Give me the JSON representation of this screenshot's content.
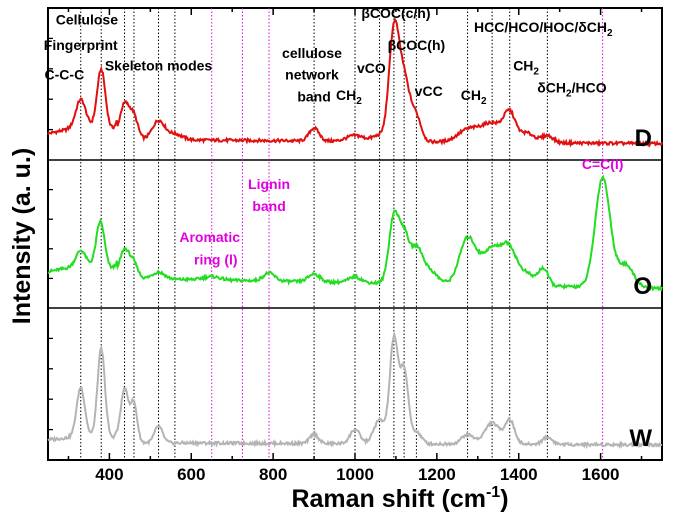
{
  "chart_data": {
    "type": "line",
    "xlabel": "Raman shift (cm",
    "xlabel_sup": "-1",
    "xlabel_close": ")",
    "ylabel": "Intensity (a. u.)",
    "xlim": [
      250,
      1750
    ],
    "xticks": [
      400,
      600,
      800,
      1000,
      1200,
      1400,
      1600
    ],
    "x_minor_step": 100,
    "panels": [
      {
        "label": "D",
        "color": "#e01010"
      },
      {
        "label": "O",
        "color": "#22dd22"
      },
      {
        "label": "W",
        "color": "#b4b4b4"
      }
    ],
    "series": [
      {
        "name": "D",
        "color": "#e01010",
        "peaks": [
          [
            330,
            0.24,
            12
          ],
          [
            380,
            0.5,
            10
          ],
          [
            437,
            0.3,
            12
          ],
          [
            460,
            0.18,
            10
          ],
          [
            520,
            0.16,
            15
          ],
          [
            560,
            0.05,
            18
          ],
          [
            900,
            0.11,
            12
          ],
          [
            1000,
            0.05,
            20
          ],
          [
            1060,
            0.05,
            18
          ],
          [
            1095,
            0.9,
            12
          ],
          [
            1120,
            0.52,
            14
          ],
          [
            1150,
            0.2,
            12
          ],
          [
            1275,
            0.1,
            25
          ],
          [
            1335,
            0.16,
            28
          ],
          [
            1378,
            0.22,
            14
          ],
          [
            1420,
            0.08,
            18
          ],
          [
            1470,
            0.06,
            14
          ]
        ],
        "baseline": [
          0.06,
          0.02
        ]
      },
      {
        "name": "O",
        "color": "#22dd22",
        "peaks": [
          [
            330,
            0.14,
            12
          ],
          [
            378,
            0.4,
            10
          ],
          [
            437,
            0.25,
            12
          ],
          [
            460,
            0.12,
            10
          ],
          [
            520,
            0.06,
            15
          ],
          [
            650,
            0.03,
            20
          ],
          [
            790,
            0.07,
            14
          ],
          [
            900,
            0.07,
            14
          ],
          [
            1000,
            0.05,
            15
          ],
          [
            1095,
            0.58,
            12
          ],
          [
            1120,
            0.4,
            12
          ],
          [
            1150,
            0.28,
            14
          ],
          [
            1180,
            0.12,
            20
          ],
          [
            1275,
            0.4,
            20
          ],
          [
            1335,
            0.32,
            25
          ],
          [
            1378,
            0.28,
            18
          ],
          [
            1420,
            0.1,
            18
          ],
          [
            1460,
            0.15,
            12
          ],
          [
            1605,
            0.96,
            18
          ],
          [
            1660,
            0.2,
            20
          ]
        ],
        "baseline": [
          0.15,
          0.05
        ]
      },
      {
        "name": "W",
        "color": "#b4b4b4",
        "peaks": [
          [
            330,
            0.42,
            10
          ],
          [
            380,
            0.75,
            9
          ],
          [
            437,
            0.45,
            10
          ],
          [
            460,
            0.32,
            8
          ],
          [
            520,
            0.14,
            10
          ],
          [
            900,
            0.08,
            10
          ],
          [
            1000,
            0.12,
            12
          ],
          [
            1060,
            0.2,
            14
          ],
          [
            1095,
            0.88,
            10
          ],
          [
            1120,
            0.62,
            10
          ],
          [
            1150,
            0.1,
            12
          ],
          [
            1275,
            0.08,
            15
          ],
          [
            1335,
            0.18,
            18
          ],
          [
            1378,
            0.2,
            12
          ],
          [
            1470,
            0.06,
            12
          ]
        ],
        "baseline": [
          0.03,
          0.01
        ]
      }
    ],
    "reference_lines": [
      {
        "x": 330,
        "color": "#000"
      },
      {
        "x": 380,
        "color": "#000"
      },
      {
        "x": 437,
        "color": "#000"
      },
      {
        "x": 460,
        "color": "#000"
      },
      {
        "x": 520,
        "color": "#000"
      },
      {
        "x": 560,
        "color": "#000"
      },
      {
        "x": 900,
        "color": "#000"
      },
      {
        "x": 1000,
        "color": "#000"
      },
      {
        "x": 1060,
        "color": "#000"
      },
      {
        "x": 1095,
        "color": "#000"
      },
      {
        "x": 1120,
        "color": "#000"
      },
      {
        "x": 1150,
        "color": "#000"
      },
      {
        "x": 1275,
        "color": "#000"
      },
      {
        "x": 1335,
        "color": "#000"
      },
      {
        "x": 1378,
        "color": "#000"
      },
      {
        "x": 1470,
        "color": "#000"
      },
      {
        "x": 650,
        "color": "#e000e0"
      },
      {
        "x": 725,
        "color": "#e000e0"
      },
      {
        "x": 790,
        "color": "#e000e0"
      },
      {
        "x": 1605,
        "color": "#e000e0"
      }
    ],
    "annotations": [
      {
        "text": "C-C-C",
        "x": 290,
        "panel": 0,
        "level": 0.55,
        "color": "black"
      },
      {
        "text": "Cellulose",
        "x": 345,
        "panel": 0,
        "level": 0.98,
        "color": "black"
      },
      {
        "text": "Fingerprint",
        "x": 330,
        "panel": 0,
        "level": 0.78,
        "color": "black"
      },
      {
        "text": "Skeleton modes",
        "x": 520,
        "panel": 0,
        "level": 0.62,
        "color": "black"
      },
      {
        "text": "cellulose",
        "x": 895,
        "panel": 0,
        "level": 0.72,
        "color": "black"
      },
      {
        "text": "network",
        "x": 895,
        "panel": 0,
        "level": 0.55,
        "color": "black"
      },
      {
        "text": "band",
        "x": 900,
        "panel": 0,
        "level": 0.38,
        "color": "black"
      },
      {
        "text": "vCO",
        "x": 1040,
        "panel": 0,
        "level": 0.6,
        "color": "black"
      },
      {
        "text": "βCOC(c/h)",
        "x": 1100,
        "panel": 0,
        "level": 1.03,
        "color": "black"
      },
      {
        "text": "βCOC(h)",
        "x": 1150,
        "panel": 0,
        "level": 0.78,
        "color": "black"
      },
      {
        "text": "vCC",
        "x": 1180,
        "panel": 0,
        "level": 0.42,
        "color": "black"
      },
      {
        "text": "HCC/HCO/HOC/δCH",
        "x": 1460,
        "panel": 0,
        "level": 0.92,
        "color": "black"
      },
      {
        "text": "CH",
        "x": 1418,
        "panel": 0,
        "level": 0.62,
        "color": "black"
      },
      {
        "text": "CH",
        "x": 1290,
        "panel": 0,
        "level": 0.39,
        "color": "black"
      },
      {
        "text": "CH",
        "x": 985,
        "panel": 0,
        "level": 0.39,
        "color": "black"
      },
      {
        "text": "δCH",
        "x": 1530,
        "panel": 0,
        "level": 0.45,
        "color": "black"
      },
      {
        "text": "Lignin",
        "x": 790,
        "panel": 1,
        "level": 0.88,
        "color": "magenta"
      },
      {
        "text": "band",
        "x": 790,
        "panel": 1,
        "level": 0.7,
        "color": "magenta"
      },
      {
        "text": "Aromatic",
        "x": 645,
        "panel": 1,
        "level": 0.45,
        "color": "magenta"
      },
      {
        "text": "ring (l)",
        "x": 660,
        "panel": 1,
        "level": 0.27,
        "color": "magenta"
      },
      {
        "text": "C=C(l)",
        "x": 1605,
        "panel": 1,
        "level": 1.04,
        "color": "magenta"
      }
    ],
    "subscripts": {
      "ch2_sub": "2",
      "dch2_suffix": "/HCO"
    }
  }
}
